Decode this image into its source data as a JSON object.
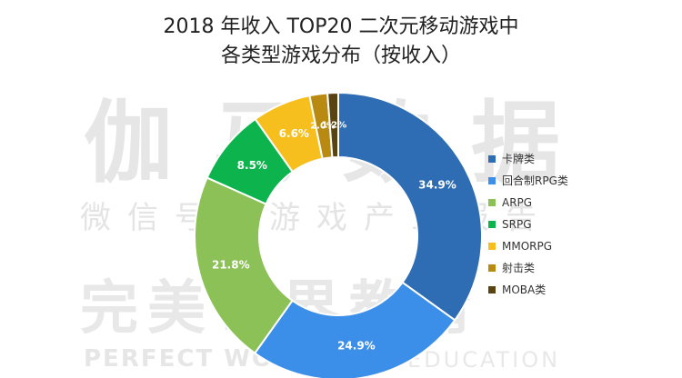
{
  "title_lines": [
    "2018 年收入 TOP20 二次元移动游戏中",
    "各类型游戏分布（按收入）"
  ],
  "watermark": {
    "line1": "伽马数据",
    "line2": "微信号：游戏产业报告",
    "line3": "完美世界教育",
    "line4": "PERFECT WORLD",
    "line5": "EDUCATION"
  },
  "colors": {
    "slice_border": "#ffffff",
    "title": "#222222",
    "label": "#ffffff"
  },
  "chart_data": {
    "type": "pie",
    "variant": "donut",
    "series": [
      {
        "categories": [
          "卡牌类",
          "回合制RPG类",
          "ARPG",
          "SRPG",
          "MMORPG",
          "射击类",
          "MOBA类"
        ],
        "values": [
          34.9,
          24.9,
          21.8,
          8.5,
          6.6,
          2.0,
          1.2
        ],
        "labels": [
          "34.9%",
          "24.9%",
          "21.8%",
          "8.5%",
          "6.6%",
          "2.0%",
          "1.2%"
        ],
        "colors": [
          "#2E6DB4",
          "#3C8FE8",
          "#8CC157",
          "#0DB34C",
          "#F7BF1E",
          "#B98A12",
          "#5A4312"
        ]
      }
    ],
    "legend_position": "right",
    "legend": [
      "卡牌类",
      "回合制RPG类",
      "ARPG",
      "SRPG",
      "MMORPG",
      "射击类",
      "MOBA类"
    ]
  }
}
